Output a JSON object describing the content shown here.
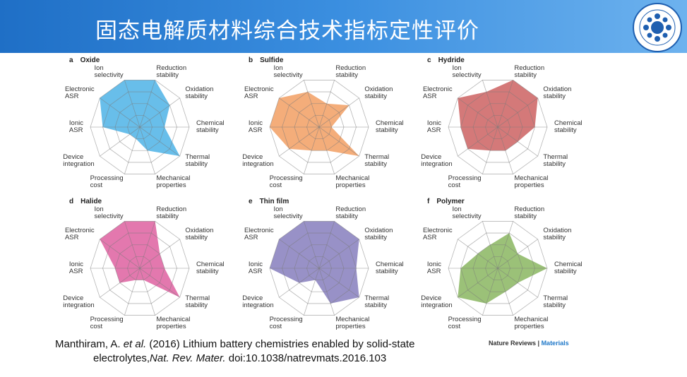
{
  "header": {
    "title": "固态电解质材料综合技术指标定性评价"
  },
  "chart_data": [
    {
      "type": "radar",
      "label": "a",
      "title": "Oxide",
      "color": "#5bb9e8",
      "categories": [
        "Ion\nselectivity",
        "Reduction\nstability",
        "Oxidation\nstability",
        "Chemical\nstability",
        "Thermal\nstability",
        "Mechanical\nproperties",
        "Processing\ncost",
        "Device\nintegration",
        "Ionic\nASR",
        "Electronic\nASR"
      ],
      "values": [
        4,
        4,
        3,
        2,
        4,
        2,
        1,
        1,
        3,
        4
      ],
      "rlim": [
        0,
        4
      ],
      "rticks": [
        1,
        2,
        3,
        4
      ]
    },
    {
      "type": "radar",
      "label": "b",
      "title": "Sulfide",
      "color": "#f3a66f",
      "categories": [
        "Ion\nselectivity",
        "Reduction\nstability",
        "Oxidation\nstability",
        "Chemical\nstability",
        "Thermal\nstability",
        "Mechanical\nproperties",
        "Processing\ncost",
        "Device\nintegration",
        "Ionic\nASR",
        "Electronic\nASR"
      ],
      "values": [
        3,
        2,
        3,
        1,
        4,
        2,
        2,
        3,
        4,
        4
      ],
      "rlim": [
        0,
        4
      ],
      "rticks": [
        1,
        2,
        3,
        4
      ]
    },
    {
      "type": "radar",
      "label": "c",
      "title": "Hydride",
      "color": "#d06e6e",
      "categories": [
        "Ion\nselectivity",
        "Reduction\nstability",
        "Oxidation\nstability",
        "Chemical\nstability",
        "Thermal\nstability",
        "Mechanical\nproperties",
        "Processing\ncost",
        "Device\nintegration",
        "Ionic\nASR",
        "Electronic\nASR"
      ],
      "values": [
        3,
        4,
        4,
        3,
        2,
        2,
        2,
        3,
        3,
        4
      ],
      "rlim": [
        0,
        4
      ],
      "rticks": [
        1,
        2,
        3,
        4
      ]
    },
    {
      "type": "radar",
      "label": "d",
      "title": "Halide",
      "color": "#e16ca7",
      "categories": [
        "Ion\nselectivity",
        "Reduction\nstability",
        "Oxidation\nstability",
        "Chemical\nstability",
        "Thermal\nstability",
        "Mechanical\nproperties",
        "Processing\ncost",
        "Device\nintegration",
        "Ionic\nASR",
        "Electronic\nASR"
      ],
      "values": [
        4,
        4,
        2,
        2,
        4,
        1,
        1,
        2,
        2,
        4
      ],
      "rlim": [
        0,
        4
      ],
      "rticks": [
        1,
        2,
        3,
        4
      ]
    },
    {
      "type": "radar",
      "label": "e",
      "title": "Thin film",
      "color": "#8f88c2",
      "categories": [
        "Ion\nselectivity",
        "Reduction\nstability",
        "Oxidation\nstability",
        "Chemical\nstability",
        "Thermal\nstability",
        "Mechanical\nproperties",
        "Processing\ncost",
        "Device\nintegration",
        "Ionic\nASR",
        "Electronic\nASR"
      ],
      "values": [
        4,
        4,
        4,
        3,
        4,
        3,
        1,
        2,
        4,
        4
      ],
      "rlim": [
        0,
        4
      ],
      "rticks": [
        1,
        2,
        3,
        4
      ]
    },
    {
      "type": "radar",
      "label": "f",
      "title": "Polymer",
      "color": "#93bc6c",
      "categories": [
        "Ion\nselectivity",
        "Reduction\nstability",
        "Oxidation\nstability",
        "Chemical\nstability",
        "Thermal\nstability",
        "Mechanical\nproperties",
        "Processing\ncost",
        "Device\nintegration",
        "Ionic\nASR",
        "Electronic\nASR"
      ],
      "values": [
        2,
        3,
        2,
        4,
        2,
        2,
        3,
        4,
        3,
        2
      ],
      "rlim": [
        0,
        4
      ],
      "rticks": [
        1,
        2,
        3,
        4
      ]
    }
  ],
  "citation": {
    "line1": [
      "Manthiram, A. ",
      "et al.",
      " (2016) Lithium battery chemistries enabled by solid-state"
    ],
    "line2": [
      "electrolytes,",
      "Nat. Rev. Mater.",
      " doi:10.1038/natrevmats.2016.103"
    ]
  },
  "source": [
    "Nature Reviews",
    " | ",
    "Materials"
  ]
}
